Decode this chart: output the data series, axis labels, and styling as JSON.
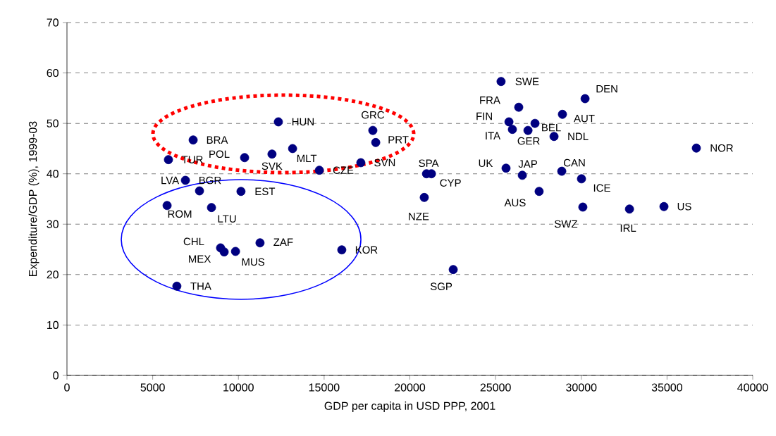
{
  "chart_data": {
    "type": "scatter",
    "xlabel": "GDP per capita in USD PPP, 2001",
    "ylabel": "Expenditure/GDP (%), 1999-03",
    "x": [
      25320,
      26350,
      30220,
      28900,
      25780,
      25980,
      27300,
      26890,
      28410,
      36710,
      25610,
      26560,
      28860,
      30010,
      27540,
      30090,
      32810,
      34820,
      20970,
      21260,
      20840,
      22530,
      12330,
      7360,
      5920,
      10360,
      11960,
      13160,
      17840,
      18010,
      17140,
      14720,
      6910,
      7730,
      10150,
      5840,
      8430,
      8960,
      9170,
      9830,
      11260,
      16030,
      6410
    ],
    "values": [
      58.3,
      53.2,
      54.9,
      51.8,
      50.3,
      48.8,
      50.0,
      48.6,
      47.4,
      45.1,
      41.1,
      39.7,
      40.5,
      39.0,
      36.5,
      33.4,
      33.0,
      33.5,
      40.0,
      40.0,
      35.3,
      21.0,
      50.3,
      46.7,
      42.8,
      43.2,
      43.9,
      45.0,
      48.6,
      46.2,
      42.2,
      40.7,
      38.7,
      36.6,
      36.5,
      33.7,
      33.3,
      25.3,
      24.5,
      24.6,
      26.3,
      24.9,
      17.7
    ],
    "color": "#000080",
    "marker": "circle",
    "xlim": [
      0,
      40000
    ],
    "ylim": [
      0,
      70
    ],
    "xticks": [
      0,
      5000,
      10000,
      15000,
      20000,
      25000,
      30000,
      35000,
      40000
    ],
    "yticks": [
      0,
      10,
      20,
      30,
      40,
      50,
      60,
      70
    ],
    "grid": "y",
    "annotations": [
      {
        "text": "SWE",
        "x": 25320,
        "y": 58.3
      },
      {
        "text": "FRA",
        "x": 26350,
        "y": 53.2
      },
      {
        "text": "DEN",
        "x": 30220,
        "y": 54.9
      },
      {
        "text": "AUT",
        "x": 28900,
        "y": 51.8
      },
      {
        "text": "FIN",
        "x": 25780,
        "y": 50.3
      },
      {
        "text": "ITA",
        "x": 25980,
        "y": 48.8
      },
      {
        "text": "BEL",
        "x": 27300,
        "y": 50.0
      },
      {
        "text": "GER",
        "x": 26890,
        "y": 48.6
      },
      {
        "text": "NDL",
        "x": 28410,
        "y": 47.4
      },
      {
        "text": "NOR",
        "x": 36710,
        "y": 45.1
      },
      {
        "text": "UK",
        "x": 25610,
        "y": 41.1
      },
      {
        "text": "JAP",
        "x": 26560,
        "y": 39.7
      },
      {
        "text": "CAN",
        "x": 28860,
        "y": 40.5
      },
      {
        "text": "ICE",
        "x": 30010,
        "y": 39.0
      },
      {
        "text": "AUS",
        "x": 27540,
        "y": 36.5
      },
      {
        "text": "SWZ",
        "x": 30090,
        "y": 33.4
      },
      {
        "text": "IRL",
        "x": 32810,
        "y": 33.0
      },
      {
        "text": "US",
        "x": 34820,
        "y": 33.5
      },
      {
        "text": "SPA",
        "x": 20970,
        "y": 40.0
      },
      {
        "text": "CYP",
        "x": 21260,
        "y": 40.0
      },
      {
        "text": "NZE",
        "x": 20840,
        "y": 35.3
      },
      {
        "text": "SGP",
        "x": 22530,
        "y": 21.0
      },
      {
        "text": "HUN",
        "x": 12330,
        "y": 50.3
      },
      {
        "text": "BRA",
        "x": 7360,
        "y": 46.7
      },
      {
        "text": "TUR",
        "x": 5920,
        "y": 42.8
      },
      {
        "text": "POL",
        "x": 10360,
        "y": 43.2
      },
      {
        "text": "SVK",
        "x": 11960,
        "y": 43.9
      },
      {
        "text": "MLT",
        "x": 13160,
        "y": 45.0
      },
      {
        "text": "GRC",
        "x": 17840,
        "y": 48.6
      },
      {
        "text": "PRT",
        "x": 18010,
        "y": 46.2
      },
      {
        "text": "SVN",
        "x": 17140,
        "y": 42.2
      },
      {
        "text": "CZE",
        "x": 14720,
        "y": 40.7
      },
      {
        "text": "LVA",
        "x": 6910,
        "y": 38.7
      },
      {
        "text": "BGR",
        "x": 7730,
        "y": 36.6
      },
      {
        "text": "EST",
        "x": 10150,
        "y": 36.5
      },
      {
        "text": "ROM",
        "x": 5840,
        "y": 33.7
      },
      {
        "text": "LTU",
        "x": 8430,
        "y": 33.3
      },
      {
        "text": "CHL",
        "x": 8960,
        "y": 25.3
      },
      {
        "text": "MEX",
        "x": 9170,
        "y": 24.5
      },
      {
        "text": "MUS",
        "x": 9830,
        "y": 24.6
      },
      {
        "text": "ZAF",
        "x": 11260,
        "y": 26.3
      },
      {
        "text": "KOR",
        "x": 16030,
        "y": 24.9
      },
      {
        "text": "THA",
        "x": 6410,
        "y": 17.7
      }
    ]
  }
}
